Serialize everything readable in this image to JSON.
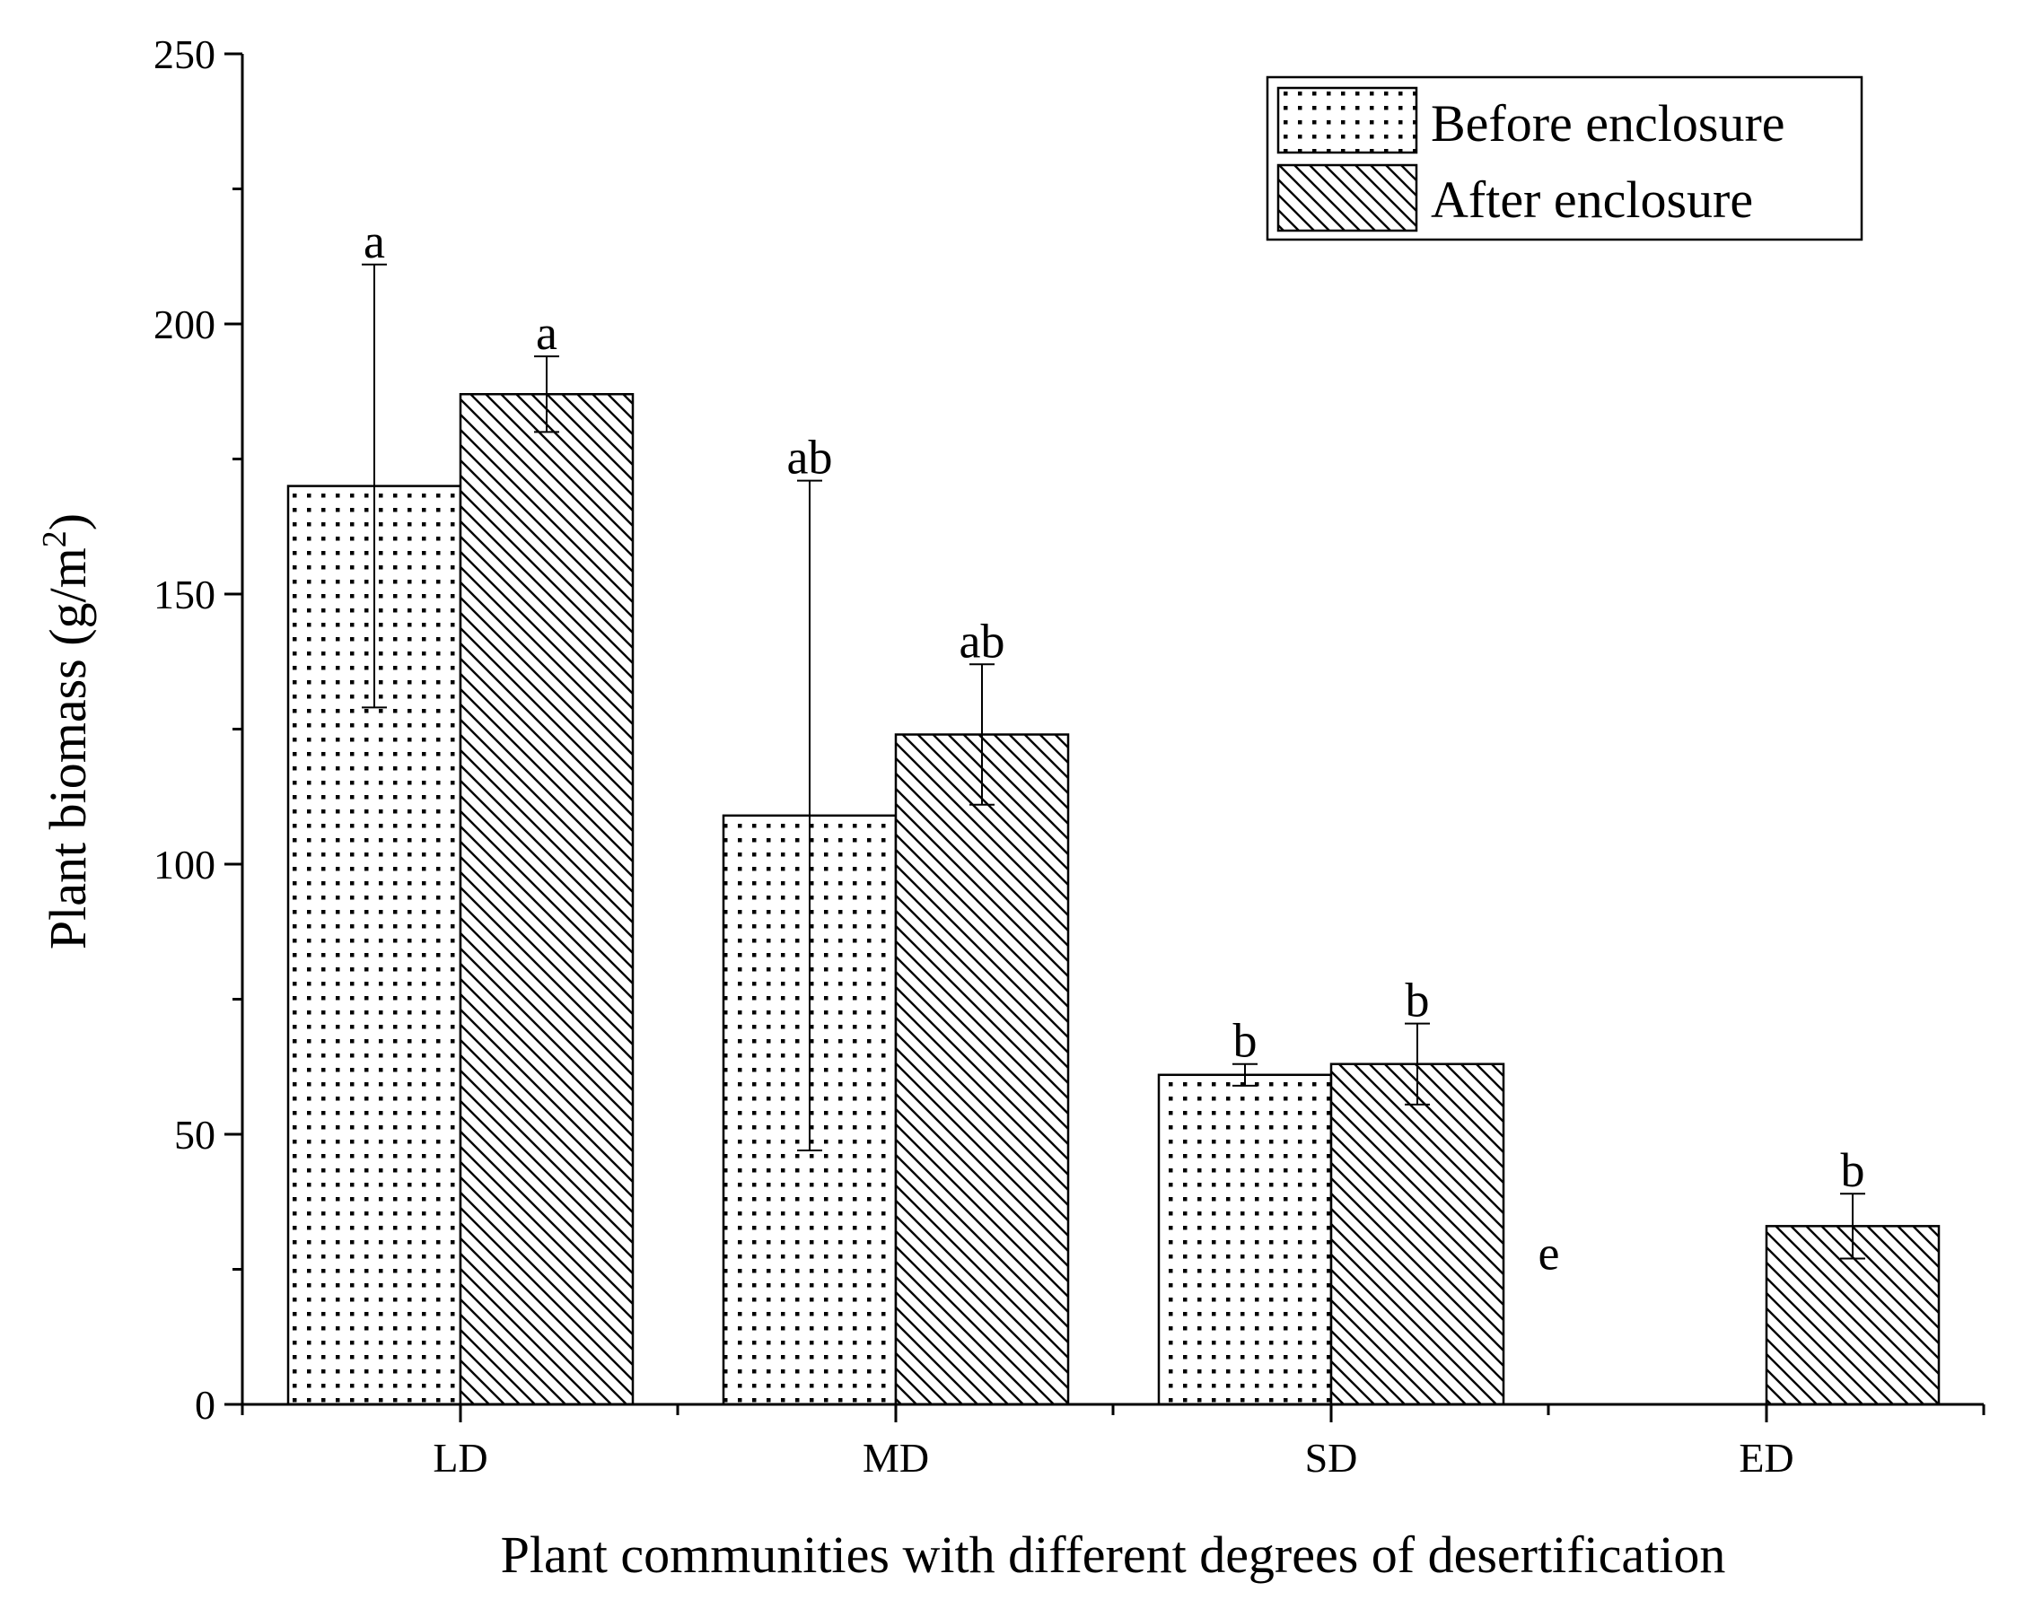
{
  "chart_data": {
    "type": "bar",
    "title": "",
    "xlabel": "Plant communities with different degrees of desertification",
    "ylabel": "Plant biomass (g/m",
    "ylabel_sup": "2",
    "ylabel_close": ")",
    "ylim": [
      0,
      250
    ],
    "yticks": [
      "0",
      "50",
      "100",
      "150",
      "200",
      "250"
    ],
    "categories": [
      "LD",
      "MD",
      "SD",
      "ED"
    ],
    "series": [
      {
        "name": "Before enclosure",
        "pattern": "dots",
        "values": [
          170,
          109,
          61,
          null
        ],
        "errors": [
          41,
          62,
          2,
          null
        ],
        "letters": [
          "a",
          "ab",
          "b",
          "e"
        ]
      },
      {
        "name": "After enclosure",
        "pattern": "hatch",
        "values": [
          187,
          124,
          63,
          33
        ],
        "errors": [
          7,
          13,
          7.5,
          6
        ],
        "letters": [
          "a",
          "ab",
          "b",
          "b"
        ]
      }
    ],
    "legend_position": "top-right",
    "grid": false
  }
}
